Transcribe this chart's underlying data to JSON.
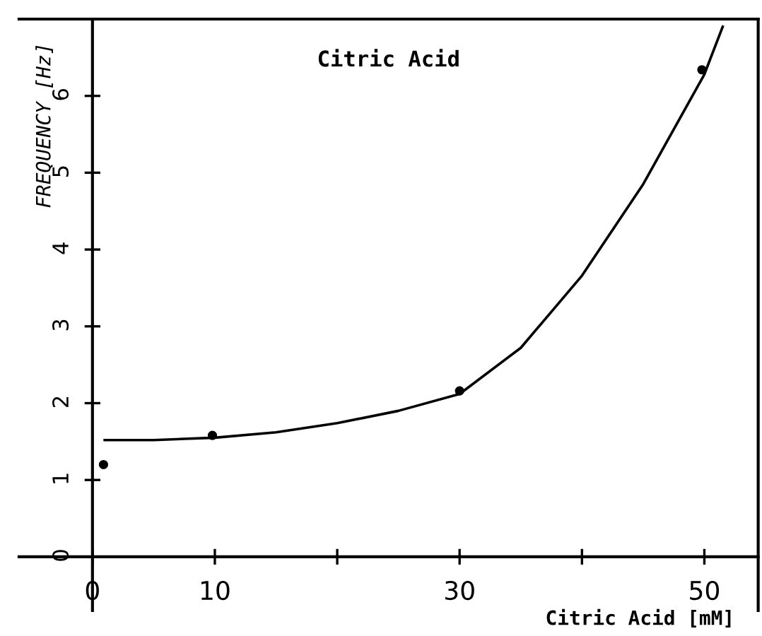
{
  "chart_data": {
    "type": "scatter",
    "title": "Citric Acid",
    "xlabel": "Citric Acid [mM]",
    "ylabel": "FREQUENCY [Hz]",
    "xlim": [
      -6,
      54.4
    ],
    "ylim": [
      -0.7,
      7.0
    ],
    "xticks": [
      0,
      10,
      {
        "value": 20,
        "label": null
      },
      30,
      {
        "value": 40,
        "label": null
      },
      50
    ],
    "yticks": [
      0,
      1,
      2,
      3,
      4,
      5,
      6
    ],
    "grid": false,
    "legend": false,
    "marker": "circle",
    "series": [
      {
        "color": "#000000",
        "x": [
          0.9,
          9.8,
          30,
          49.8
        ],
        "values": [
          1.2,
          1.58,
          2.16,
          6.34
        ]
      },
      {
        "type": "line",
        "color": "#000000",
        "line_style": "solid",
        "marker": "none",
        "x": [
          1,
          5,
          10,
          15,
          20,
          25,
          30,
          35,
          40,
          45,
          50,
          51.5
        ],
        "values": [
          1.52,
          1.52,
          1.55,
          1.62,
          1.74,
          1.9,
          2.12,
          2.72,
          3.66,
          4.85,
          6.28,
          6.9
        ]
      }
    ]
  }
}
